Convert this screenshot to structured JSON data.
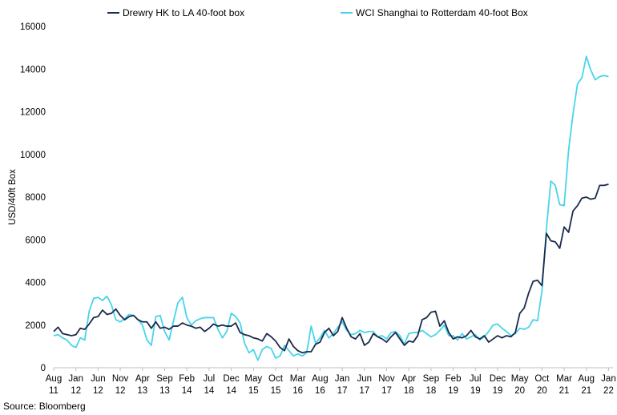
{
  "chart_data": {
    "type": "line",
    "title": "",
    "xlabel": "",
    "ylabel": "USD/40ft Box",
    "ylim": [
      0,
      16000
    ],
    "yticks": [
      0,
      2000,
      4000,
      6000,
      8000,
      10000,
      12000,
      14000,
      16000
    ],
    "xlim": [
      "2011-08",
      "2022-02"
    ],
    "x_tick_labels": [
      {
        "date": "2011-08",
        "month": "Aug",
        "year": "11"
      },
      {
        "date": "2012-01",
        "month": "Jan",
        "year": "12"
      },
      {
        "date": "2012-06",
        "month": "Jun",
        "year": "12"
      },
      {
        "date": "2012-11",
        "month": "Nov",
        "year": "12"
      },
      {
        "date": "2013-04",
        "month": "Apr",
        "year": "13"
      },
      {
        "date": "2013-09",
        "month": "Sep",
        "year": "13"
      },
      {
        "date": "2014-02",
        "month": "Feb",
        "year": "14"
      },
      {
        "date": "2014-07",
        "month": "Jul",
        "year": "14"
      },
      {
        "date": "2014-12",
        "month": "Dec",
        "year": "14"
      },
      {
        "date": "2015-05",
        "month": "May",
        "year": "15"
      },
      {
        "date": "2015-10",
        "month": "Oct",
        "year": "15"
      },
      {
        "date": "2016-03",
        "month": "Mar",
        "year": "16"
      },
      {
        "date": "2016-08",
        "month": "Aug",
        "year": "16"
      },
      {
        "date": "2017-01",
        "month": "Jan",
        "year": "17"
      },
      {
        "date": "2017-06",
        "month": "Jun",
        "year": "17"
      },
      {
        "date": "2017-11",
        "month": "Nov",
        "year": "17"
      },
      {
        "date": "2018-04",
        "month": "Apr",
        "year": "18"
      },
      {
        "date": "2018-09",
        "month": "Sep",
        "year": "18"
      },
      {
        "date": "2019-02",
        "month": "Feb",
        "year": "19"
      },
      {
        "date": "2019-07",
        "month": "Jul",
        "year": "19"
      },
      {
        "date": "2019-12",
        "month": "Dec",
        "year": "19"
      },
      {
        "date": "2020-05",
        "month": "May",
        "year": "20"
      },
      {
        "date": "2020-10",
        "month": "Oct",
        "year": "20"
      },
      {
        "date": "2021-03",
        "month": "Mar",
        "year": "21"
      },
      {
        "date": "2021-08",
        "month": "Aug",
        "year": "21"
      },
      {
        "date": "2022-01",
        "month": "Jan",
        "year": "22"
      }
    ],
    "grid": false,
    "legend_position": "top",
    "series": [
      {
        "name": "Drewry HK to LA 40-foot box",
        "color": "#1a2b4c",
        "points": [
          [
            "2011-08",
            1700
          ],
          [
            "2011-09",
            1900
          ],
          [
            "2011-10",
            1600
          ],
          [
            "2011-12",
            1500
          ],
          [
            "2012-01",
            1550
          ],
          [
            "2012-02",
            1850
          ],
          [
            "2012-03",
            1800
          ],
          [
            "2012-04",
            2050
          ],
          [
            "2012-05",
            2350
          ],
          [
            "2012-06",
            2400
          ],
          [
            "2012-07",
            2700
          ],
          [
            "2012-08",
            2500
          ],
          [
            "2012-09",
            2550
          ],
          [
            "2012-10",
            2750
          ],
          [
            "2012-11",
            2450
          ],
          [
            "2012-12",
            2250
          ],
          [
            "2013-01",
            2400
          ],
          [
            "2013-02",
            2450
          ],
          [
            "2013-03",
            2250
          ],
          [
            "2013-04",
            2150
          ],
          [
            "2013-05",
            2150
          ],
          [
            "2013-06",
            1850
          ],
          [
            "2013-07",
            2150
          ],
          [
            "2013-08",
            1850
          ],
          [
            "2013-09",
            1900
          ],
          [
            "2013-10",
            1800
          ],
          [
            "2013-11",
            1950
          ],
          [
            "2013-12",
            1950
          ],
          [
            "2014-01",
            2100
          ],
          [
            "2014-02",
            2000
          ],
          [
            "2014-03",
            1950
          ],
          [
            "2014-04",
            1850
          ],
          [
            "2014-05",
            1900
          ],
          [
            "2014-06",
            1700
          ],
          [
            "2014-07",
            1850
          ],
          [
            "2014-08",
            2050
          ],
          [
            "2014-09",
            1950
          ],
          [
            "2014-10",
            2000
          ],
          [
            "2014-11",
            1950
          ],
          [
            "2014-12",
            1950
          ],
          [
            "2015-01",
            2100
          ],
          [
            "2015-02",
            1650
          ],
          [
            "2015-03",
            1550
          ],
          [
            "2015-04",
            1500
          ],
          [
            "2015-05",
            1400
          ],
          [
            "2015-06",
            1350
          ],
          [
            "2015-07",
            1250
          ],
          [
            "2015-08",
            1600
          ],
          [
            "2015-09",
            1450
          ],
          [
            "2015-10",
            1250
          ],
          [
            "2015-11",
            950
          ],
          [
            "2015-12",
            800
          ],
          [
            "2016-01",
            1350
          ],
          [
            "2016-02",
            1000
          ],
          [
            "2016-03",
            800
          ],
          [
            "2016-04",
            700
          ],
          [
            "2016-05",
            750
          ],
          [
            "2016-06",
            750
          ],
          [
            "2016-07",
            1100
          ],
          [
            "2016-08",
            1200
          ],
          [
            "2016-09",
            1650
          ],
          [
            "2016-10",
            1850
          ],
          [
            "2016-11",
            1500
          ],
          [
            "2016-12",
            1700
          ],
          [
            "2017-01",
            2350
          ],
          [
            "2017-02",
            1850
          ],
          [
            "2017-03",
            1450
          ],
          [
            "2017-04",
            1350
          ],
          [
            "2017-05",
            1600
          ],
          [
            "2017-06",
            1050
          ],
          [
            "2017-07",
            1200
          ],
          [
            "2017-08",
            1600
          ],
          [
            "2017-09",
            1450
          ],
          [
            "2017-10",
            1350
          ],
          [
            "2017-11",
            1200
          ],
          [
            "2017-12",
            1450
          ],
          [
            "2018-01",
            1650
          ],
          [
            "2018-02",
            1350
          ],
          [
            "2018-03",
            1050
          ],
          [
            "2018-04",
            1250
          ],
          [
            "2018-05",
            1200
          ],
          [
            "2018-06",
            1500
          ],
          [
            "2018-07",
            2250
          ],
          [
            "2018-08",
            2350
          ],
          [
            "2018-09",
            2600
          ],
          [
            "2018-10",
            2650
          ],
          [
            "2018-11",
            1950
          ],
          [
            "2018-12",
            2200
          ],
          [
            "2019-01",
            1650
          ],
          [
            "2019-02",
            1350
          ],
          [
            "2019-03",
            1450
          ],
          [
            "2019-04",
            1400
          ],
          [
            "2019-05",
            1500
          ],
          [
            "2019-06",
            1750
          ],
          [
            "2019-07",
            1450
          ],
          [
            "2019-08",
            1350
          ],
          [
            "2019-09",
            1500
          ],
          [
            "2019-10",
            1200
          ],
          [
            "2019-11",
            1350
          ],
          [
            "2019-12",
            1500
          ],
          [
            "2020-01",
            1400
          ],
          [
            "2020-02",
            1500
          ],
          [
            "2020-03",
            1450
          ],
          [
            "2020-04",
            1650
          ],
          [
            "2020-05",
            2550
          ],
          [
            "2020-06",
            2800
          ],
          [
            "2020-07",
            3500
          ],
          [
            "2020-08",
            4050
          ],
          [
            "2020-09",
            4100
          ],
          [
            "2020-10",
            3850
          ],
          [
            "2020-11",
            6300
          ],
          [
            "2020-12",
            5950
          ],
          [
            "2021-01",
            5900
          ],
          [
            "2021-02",
            5600
          ],
          [
            "2021-03",
            6600
          ],
          [
            "2021-04",
            6350
          ],
          [
            "2021-05",
            7350
          ],
          [
            "2021-06",
            7600
          ],
          [
            "2021-07",
            7950
          ],
          [
            "2021-08",
            8000
          ],
          [
            "2021-09",
            7900
          ],
          [
            "2021-10",
            7950
          ],
          [
            "2021-11",
            8550
          ],
          [
            "2021-12",
            8550
          ],
          [
            "2022-01",
            8600
          ]
        ]
      },
      {
        "name": "WCI Shanghai to Rotterdam 40-foot Box",
        "color": "#48d4ea",
        "points": [
          [
            "2011-08",
            1500
          ],
          [
            "2011-09",
            1550
          ],
          [
            "2011-10",
            1400
          ],
          [
            "2011-11",
            1300
          ],
          [
            "2011-12",
            1050
          ],
          [
            "2012-01",
            950
          ],
          [
            "2012-02",
            1400
          ],
          [
            "2012-03",
            1300
          ],
          [
            "2012-04",
            2650
          ],
          [
            "2012-05",
            3250
          ],
          [
            "2012-06",
            3300
          ],
          [
            "2012-07",
            3150
          ],
          [
            "2012-08",
            3350
          ],
          [
            "2012-09",
            2950
          ],
          [
            "2012-10",
            2250
          ],
          [
            "2012-11",
            2150
          ],
          [
            "2012-12",
            2300
          ],
          [
            "2013-01",
            2500
          ],
          [
            "2013-02",
            2450
          ],
          [
            "2013-03",
            2250
          ],
          [
            "2013-04",
            2000
          ],
          [
            "2013-05",
            1300
          ],
          [
            "2013-06",
            1050
          ],
          [
            "2013-07",
            2400
          ],
          [
            "2013-08",
            2450
          ],
          [
            "2013-09",
            1700
          ],
          [
            "2013-10",
            1300
          ],
          [
            "2013-11",
            2200
          ],
          [
            "2013-12",
            3050
          ],
          [
            "2014-01",
            3300
          ],
          [
            "2014-02",
            2350
          ],
          [
            "2014-03",
            2000
          ],
          [
            "2014-04",
            2200
          ],
          [
            "2014-05",
            2300
          ],
          [
            "2014-06",
            2350
          ],
          [
            "2014-07",
            2350
          ],
          [
            "2014-08",
            2350
          ],
          [
            "2014-09",
            1800
          ],
          [
            "2014-10",
            1400
          ],
          [
            "2014-11",
            1700
          ],
          [
            "2014-12",
            2550
          ],
          [
            "2015-01",
            2400
          ],
          [
            "2015-02",
            2100
          ],
          [
            "2015-03",
            1150
          ],
          [
            "2015-04",
            700
          ],
          [
            "2015-05",
            850
          ],
          [
            "2015-06",
            350
          ],
          [
            "2015-07",
            850
          ],
          [
            "2015-08",
            1000
          ],
          [
            "2015-09",
            900
          ],
          [
            "2015-10",
            450
          ],
          [
            "2015-11",
            550
          ],
          [
            "2015-12",
            1050
          ],
          [
            "2016-01",
            800
          ],
          [
            "2016-02",
            550
          ],
          [
            "2016-03",
            650
          ],
          [
            "2016-04",
            550
          ],
          [
            "2016-05",
            700
          ],
          [
            "2016-06",
            1950
          ],
          [
            "2016-07",
            1150
          ],
          [
            "2016-08",
            1400
          ],
          [
            "2016-09",
            1750
          ],
          [
            "2016-10",
            1400
          ],
          [
            "2016-11",
            1600
          ],
          [
            "2016-12",
            1900
          ],
          [
            "2017-01",
            2150
          ],
          [
            "2017-02",
            1750
          ],
          [
            "2017-03",
            1550
          ],
          [
            "2017-04",
            1600
          ],
          [
            "2017-05",
            1750
          ],
          [
            "2017-06",
            1650
          ],
          [
            "2017-07",
            1700
          ],
          [
            "2017-08",
            1700
          ],
          [
            "2017-09",
            1450
          ],
          [
            "2017-10",
            1500
          ],
          [
            "2017-11",
            1350
          ],
          [
            "2017-12",
            1650
          ],
          [
            "2018-01",
            1700
          ],
          [
            "2018-02",
            1500
          ],
          [
            "2018-03",
            1100
          ],
          [
            "2018-04",
            1600
          ],
          [
            "2018-05",
            1650
          ],
          [
            "2018-06",
            1650
          ],
          [
            "2018-07",
            1750
          ],
          [
            "2018-08",
            1600
          ],
          [
            "2018-09",
            1450
          ],
          [
            "2018-10",
            1550
          ],
          [
            "2018-11",
            1750
          ],
          [
            "2018-12",
            2000
          ],
          [
            "2019-01",
            1500
          ],
          [
            "2019-02",
            1500
          ],
          [
            "2019-03",
            1300
          ],
          [
            "2019-04",
            1600
          ],
          [
            "2019-05",
            1350
          ],
          [
            "2019-06",
            1450
          ],
          [
            "2019-07",
            1550
          ],
          [
            "2019-08",
            1300
          ],
          [
            "2019-09",
            1450
          ],
          [
            "2019-10",
            1700
          ],
          [
            "2019-11",
            2000
          ],
          [
            "2019-12",
            2050
          ],
          [
            "2020-01",
            1850
          ],
          [
            "2020-02",
            1700
          ],
          [
            "2020-03",
            1500
          ],
          [
            "2020-04",
            1600
          ],
          [
            "2020-05",
            1850
          ],
          [
            "2020-06",
            1800
          ],
          [
            "2020-07",
            1900
          ],
          [
            "2020-08",
            2250
          ],
          [
            "2020-09",
            2200
          ],
          [
            "2020-10",
            3600
          ],
          [
            "2020-11",
            6500
          ],
          [
            "2020-12",
            8750
          ],
          [
            "2021-01",
            8550
          ],
          [
            "2021-02",
            7650
          ],
          [
            "2021-03",
            7600
          ],
          [
            "2021-04",
            10200
          ],
          [
            "2021-05",
            11900
          ],
          [
            "2021-06",
            13300
          ],
          [
            "2021-07",
            13600
          ],
          [
            "2021-08",
            14600
          ],
          [
            "2021-09",
            13950
          ],
          [
            "2021-10",
            13500
          ],
          [
            "2021-11",
            13650
          ],
          [
            "2021-12",
            13700
          ],
          [
            "2022-01",
            13650
          ]
        ]
      }
    ],
    "source": "Source: Bloomberg"
  }
}
